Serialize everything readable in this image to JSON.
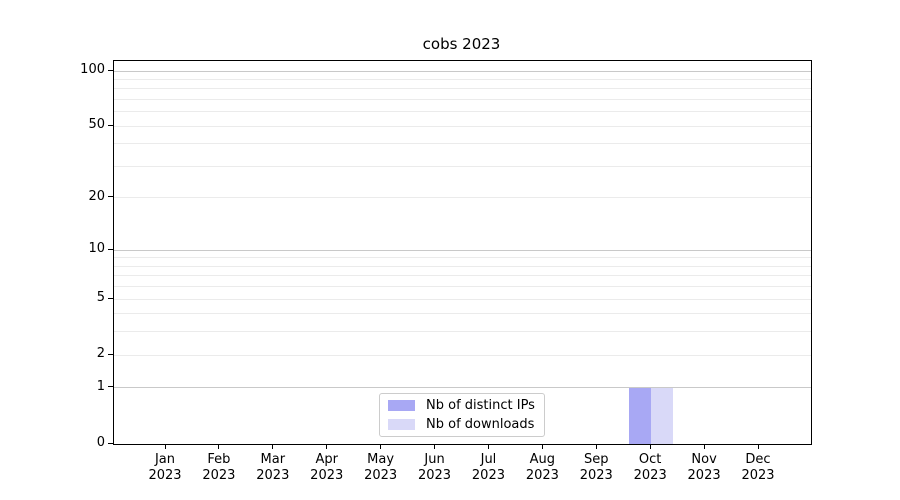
{
  "chart_data": {
    "type": "bar",
    "title": "cobs 2023",
    "xlabel": "",
    "ylabel": "",
    "categories": [
      "Jan 2023",
      "Feb 2023",
      "Mar 2023",
      "Apr 2023",
      "May 2023",
      "Jun 2023",
      "Jul 2023",
      "Aug 2023",
      "Sep 2023",
      "Oct 2023",
      "Nov 2023",
      "Dec 2023"
    ],
    "series": [
      {
        "name": "Nb of distinct IPs",
        "color": "#a8a8f4",
        "values": [
          0,
          0,
          0,
          0,
          0,
          0,
          0,
          0,
          0,
          1,
          0,
          0
        ]
      },
      {
        "name": "Nb of downloads",
        "color": "#d9d9f8",
        "values": [
          0,
          0,
          0,
          0,
          0,
          0,
          0,
          0,
          0,
          1,
          0,
          0
        ]
      }
    ],
    "yscale": "log1p",
    "ylim": [
      0,
      100
    ],
    "y_ticks": [
      0,
      1,
      2,
      5,
      10,
      20,
      50,
      100
    ],
    "x_tick_year": "2023",
    "grid": {
      "major_values": [
        1,
        10,
        100
      ],
      "minor_values": [
        2,
        3,
        4,
        5,
        6,
        7,
        8,
        9,
        20,
        30,
        40,
        50,
        60,
        70,
        80,
        90
      ],
      "major_color": "#c9c9c9",
      "minor_color": "#ebebeb"
    },
    "legend": {
      "position": "lower-center-inside",
      "entries": [
        "Nb of distinct IPs",
        "Nb of downloads"
      ]
    }
  },
  "colors": {
    "background": "#ffffff",
    "axis": "#000000",
    "text": "#000000"
  }
}
